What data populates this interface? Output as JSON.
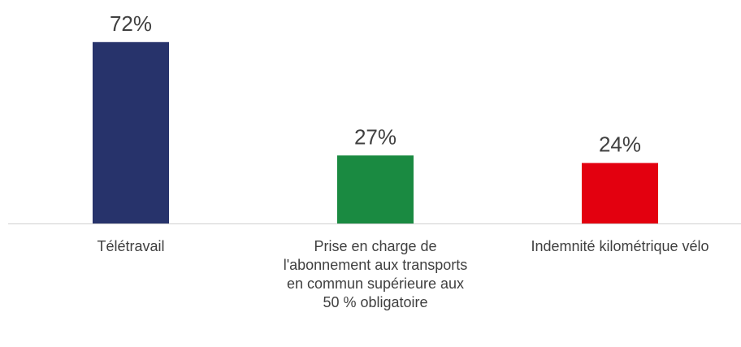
{
  "chart_data": {
    "type": "bar",
    "categories": [
      "Télétravail",
      "Prise en charge de l'abonnement aux transports en commun supérieure aux 50 % obligatoire",
      "Indemnité kilométrique vélo"
    ],
    "values": [
      72,
      27,
      24
    ],
    "value_labels": [
      "72%",
      "27%",
      "24%"
    ],
    "colors": [
      "#27336b",
      "#1a8a41",
      "#e3000f"
    ]
  }
}
